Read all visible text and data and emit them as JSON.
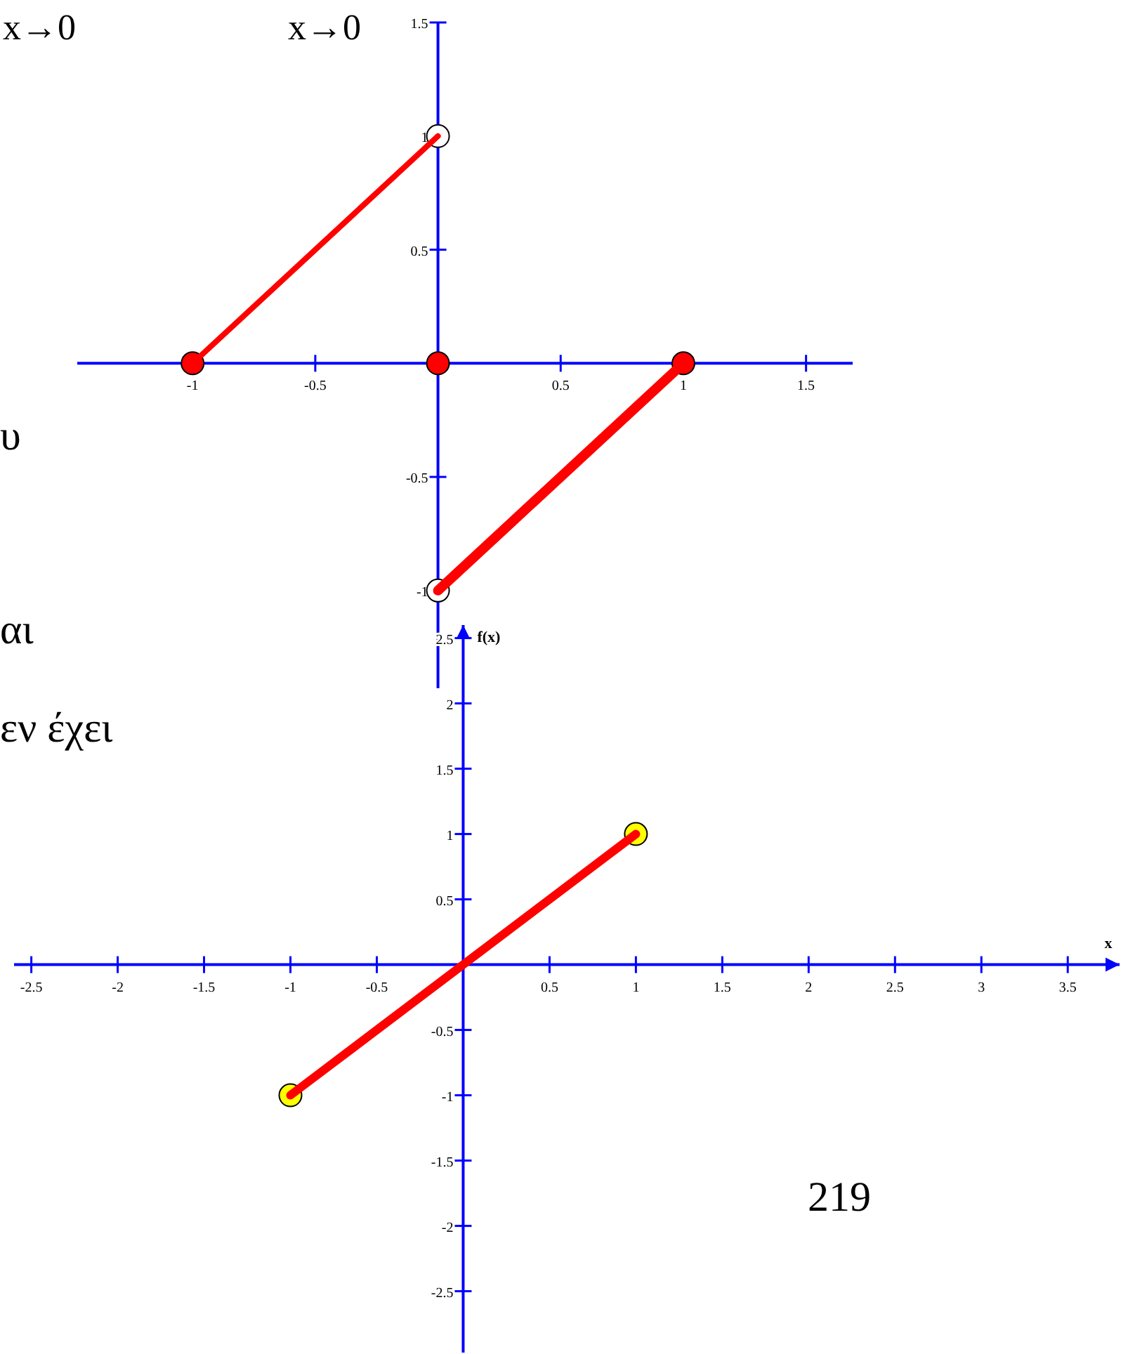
{
  "chart_data": [
    {
      "type": "line",
      "xlim": [
        -1.47,
        1.69
      ],
      "ylim": [
        -1.43,
        1.5
      ],
      "xticks": [
        -1,
        -0.5,
        0.5,
        1,
        1.5
      ],
      "yticks": [
        -1,
        -0.5,
        0.5,
        1,
        1.5
      ],
      "grid": false,
      "line_style": "solid",
      "series": [
        {
          "type": "line",
          "color": "#ff0000",
          "x": [
            -1,
            0
          ],
          "values": [
            0,
            1
          ]
        },
        {
          "type": "line",
          "color": "#ff0000",
          "x": [
            0,
            1
          ],
          "values": [
            -1,
            0
          ]
        },
        {
          "type": "scatter",
          "color": "#ff0000",
          "marker": "circle",
          "x": [
            -1,
            0,
            1
          ],
          "values": [
            0,
            0,
            0
          ]
        },
        {
          "type": "scatter",
          "color": "#ffffff",
          "marker": "circle",
          "x": [
            0,
            0
          ],
          "values": [
            1,
            -1
          ]
        }
      ]
    },
    {
      "type": "line",
      "xlabel": "x",
      "ylabel": "f(x)",
      "xlim": [
        -2.6,
        3.8
      ],
      "ylim": [
        -2.97,
        2.6
      ],
      "xticks": [
        -2.5,
        -2,
        -1.5,
        -1,
        -0.5,
        0.5,
        1,
        1.5,
        2,
        2.5,
        3,
        3.5
      ],
      "yticks": [
        -2.5,
        -2,
        -1.5,
        -1,
        -0.5,
        0.5,
        1,
        1.5,
        2,
        2.5
      ],
      "grid": false,
      "line_style": "solid",
      "series": [
        {
          "type": "line",
          "color": "#ff0000",
          "x": [
            -1,
            1
          ],
          "values": [
            -1,
            1
          ]
        },
        {
          "type": "scatter",
          "color": "#ffff00",
          "marker": "circle",
          "x": [
            -1,
            1
          ],
          "values": [
            -1,
            1
          ]
        }
      ]
    },
    {
      "type": "other",
      "annotations": [
        "x→0",
        "x→0",
        "υ",
        "αι",
        "εν έχει",
        "219"
      ]
    }
  ]
}
